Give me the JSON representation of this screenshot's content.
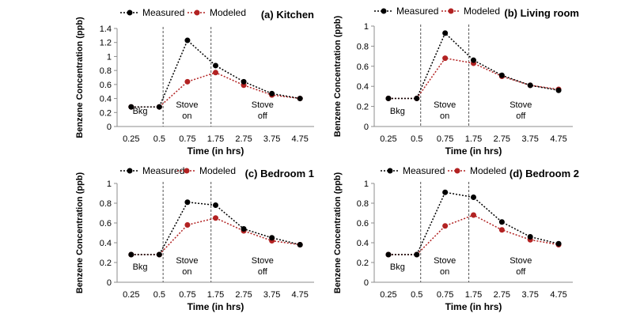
{
  "chart_data": [
    {
      "type": "line",
      "title": "(a) Kitchen",
      "xlabel": "Time (in hrs)",
      "ylabel": "Benzene Concentration (ppb)",
      "categories": [
        "0.25",
        "0.5",
        "0.75",
        "1.75",
        "2.75",
        "3.75",
        "4.75"
      ],
      "ylim": [
        0,
        1.4
      ],
      "yticks": [
        "0",
        "0.2",
        "0.4",
        "0.6",
        "0.8",
        "1",
        "1.2",
        "1.4"
      ],
      "annotations": [
        {
          "lines": [
            "Bkg"
          ]
        },
        {
          "lines": [
            "Stove",
            "on"
          ]
        },
        {
          "lines": [
            "Stove",
            "off"
          ]
        }
      ],
      "series": [
        {
          "name": "Measured",
          "color": "#000000",
          "values": [
            0.28,
            0.28,
            1.23,
            0.87,
            0.64,
            0.47,
            0.4
          ]
        },
        {
          "name": "Modeled",
          "color": "#b22222",
          "values": [
            0.28,
            0.28,
            0.64,
            0.77,
            0.59,
            0.45,
            0.4
          ]
        }
      ],
      "legend": "top"
    },
    {
      "type": "line",
      "title": "(b) Living room",
      "xlabel": "Time (in hrs)",
      "ylabel": "Benzene Concentration (ppb)",
      "categories": [
        "0.25",
        "0.5",
        "0.75",
        "1.75",
        "2.75",
        "3.75",
        "4.75"
      ],
      "ylim": [
        0,
        1
      ],
      "yticks": [
        "0",
        "0.2",
        "0.4",
        "0.6",
        "0.8",
        "1"
      ],
      "annotations": [
        {
          "lines": [
            "Bkg"
          ]
        },
        {
          "lines": [
            "Stove",
            "on"
          ]
        },
        {
          "lines": [
            "Stove",
            "off"
          ]
        }
      ],
      "series": [
        {
          "name": "Measured",
          "color": "#000000",
          "values": [
            0.28,
            0.28,
            0.93,
            0.66,
            0.51,
            0.41,
            0.36
          ]
        },
        {
          "name": "Modeled",
          "color": "#b22222",
          "values": [
            0.28,
            0.28,
            0.68,
            0.63,
            0.5,
            0.41,
            0.37
          ]
        }
      ],
      "legend": "top"
    },
    {
      "type": "line",
      "title": "(c) Bedroom 1",
      "xlabel": "Time (in hrs)",
      "ylabel": "Benzene Concentration (ppb)",
      "categories": [
        "0.25",
        "0.5",
        "0.75",
        "1.75",
        "2.75",
        "3.75",
        "4.75"
      ],
      "ylim": [
        0,
        1
      ],
      "yticks": [
        "0",
        "0.2",
        "0.4",
        "0.6",
        "0.8",
        "1"
      ],
      "annotations": [
        {
          "lines": [
            "Bkg"
          ]
        },
        {
          "lines": [
            "Stove",
            "on"
          ]
        },
        {
          "lines": [
            "Stove",
            "off"
          ]
        }
      ],
      "series": [
        {
          "name": "Measured",
          "color": "#000000",
          "values": [
            0.28,
            0.28,
            0.81,
            0.78,
            0.54,
            0.45,
            0.38
          ]
        },
        {
          "name": "Modeled",
          "color": "#b22222",
          "values": [
            0.28,
            0.28,
            0.58,
            0.65,
            0.52,
            0.42,
            0.38
          ]
        }
      ],
      "legend": "top"
    },
    {
      "type": "line",
      "title": "(d) Bedroom 2",
      "xlabel": "Time (in hrs)",
      "ylabel": "Benzene Concentration (ppb)",
      "categories": [
        "0.25",
        "0.5",
        "0.75",
        "1.75",
        "2.75",
        "3.75",
        "4.75"
      ],
      "ylim": [
        0,
        1
      ],
      "yticks": [
        "0",
        "0.2",
        "0.4",
        "0.6",
        "0.8",
        "1"
      ],
      "annotations": [
        {
          "lines": [
            "Bkg"
          ]
        },
        {
          "lines": [
            "Stove",
            "on"
          ]
        },
        {
          "lines": [
            "Stove",
            "off"
          ]
        }
      ],
      "series": [
        {
          "name": "Measured",
          "color": "#000000",
          "values": [
            0.28,
            0.28,
            0.91,
            0.86,
            0.61,
            0.46,
            0.39
          ]
        },
        {
          "name": "Modeled",
          "color": "#b22222",
          "values": [
            0.28,
            0.28,
            0.57,
            0.68,
            0.53,
            0.43,
            0.38
          ]
        }
      ],
      "legend": "top"
    }
  ]
}
